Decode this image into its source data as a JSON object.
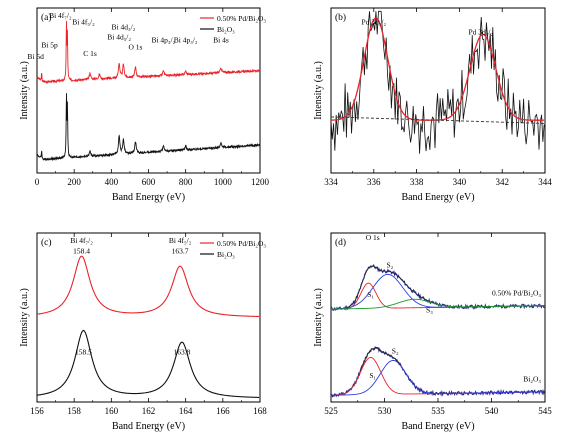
{
  "colors": {
    "red": "#e8242a",
    "black": "#111111",
    "blue": "#2a3fe0",
    "green": "#1a9a2a",
    "navy": "#2a2a8a"
  },
  "chart_data": [
    {
      "id": "a",
      "type": "line",
      "panel_label": "(a)",
      "xlabel": "Band Energy (eV)",
      "ylabel": "Intensity (a.u.)",
      "xlim": [
        0,
        1200
      ],
      "xticks": [
        "0",
        "200",
        "400",
        "600",
        "800",
        "1000",
        "1200"
      ],
      "legend": {
        "placement": "top-right",
        "entries": [
          {
            "label": "0.50% Pd/Bi₂O₃",
            "color": "#e8242a"
          },
          {
            "label": "Bi₂O₃",
            "color": "#111111"
          }
        ]
      },
      "series": [
        {
          "name": "0.50% Pd/Bi₂O₃",
          "color": "#e8242a",
          "baseline": [
            [
              0,
              0.55
            ],
            [
              1200,
              0.62
            ]
          ],
          "peaks": [
            [
              25,
              0.05
            ],
            [
              158.5,
              0.35
            ],
            [
              163.7,
              0.27
            ],
            [
              285,
              0.04
            ],
            [
              336,
              0.03
            ],
            [
              442,
              0.09
            ],
            [
              465,
              0.08
            ],
            [
              530,
              0.06
            ],
            [
              680,
              0.03
            ],
            [
              800,
              0.02
            ],
            [
              990,
              0.03
            ]
          ]
        },
        {
          "name": "Bi₂O₃",
          "color": "#111111",
          "baseline": [
            [
              0,
              0.08
            ],
            [
              1200,
              0.17
            ]
          ],
          "peaks": [
            [
              25,
              0.05
            ],
            [
              158.5,
              0.38
            ],
            [
              163.8,
              0.3
            ],
            [
              285,
              0.03
            ],
            [
              442,
              0.11
            ],
            [
              465,
              0.09
            ],
            [
              530,
              0.07
            ],
            [
              680,
              0.035
            ],
            [
              800,
              0.025
            ],
            [
              990,
              0.03
            ]
          ]
        }
      ],
      "annotations": [
        {
          "text": "Bi 5d",
          "x": 25
        },
        {
          "text": "Bi 5p",
          "x": 57
        },
        {
          "text": "Bi 4f₇/₂",
          "x": 158
        },
        {
          "text": "Bi 4f₅/₂",
          "x": 164
        },
        {
          "text": "C 1s",
          "x": 285
        },
        {
          "text": "Bi 4d₅/₂",
          "x": 442
        },
        {
          "text": "Bi 4d₃/₂",
          "x": 465
        },
        {
          "text": "O 1s",
          "x": 530
        },
        {
          "text": "Bi 4p₃/₂",
          "x": 680
        },
        {
          "text": "Bi 4p₃/₂",
          "x": 800
        },
        {
          "text": "Bi 4s",
          "x": 990
        }
      ]
    },
    {
      "id": "b",
      "type": "line",
      "panel_label": "(b)",
      "xlabel": "Band Energy (eV)",
      "ylabel": "Intensity (a.u.)",
      "xlim": [
        334,
        344
      ],
      "xticks": [
        "334",
        "336",
        "338",
        "340",
        "342",
        "344"
      ],
      "series": [
        {
          "name": "raw",
          "color": "#111111",
          "style": "noisy",
          "noise_amplitude": 0.18,
          "seed": 7
        },
        {
          "name": "fit",
          "color": "#e8242a",
          "style": "fit"
        },
        {
          "name": "background",
          "color": "#333333",
          "style": "dashed"
        }
      ],
      "fit_peaks": [
        {
          "center": 336.1,
          "height": 0.62,
          "width": 0.55
        },
        {
          "center": 341.1,
          "height": 0.52,
          "width": 0.6
        }
      ],
      "background_level": 0.32,
      "annotations": [
        {
          "text": "Pd 3d₅/₂",
          "x": 336.0
        },
        {
          "text": "Pd 3d₃/₂",
          "x": 341.0
        }
      ]
    },
    {
      "id": "c",
      "type": "line",
      "panel_label": "(c)",
      "xlabel": "Band Energy (eV)",
      "ylabel": "Intensity (a.u.)",
      "xlim": [
        156,
        168
      ],
      "xticks": [
        "156",
        "158",
        "160",
        "162",
        "164",
        "166",
        "168"
      ],
      "legend": {
        "placement": "top-right",
        "entries": [
          {
            "label": "0.50% Pd/Bi₂O₃",
            "color": "#e8242a"
          },
          {
            "label": "Bi₂O₃",
            "color": "#111111"
          }
        ]
      },
      "series": [
        {
          "name": "0.50% Pd/Bi₂O₃",
          "color": "#e8242a",
          "offset": 0.5,
          "peaks": [
            {
              "center": 158.4,
              "height": 0.36
            },
            {
              "center": 163.7,
              "height": 0.3
            }
          ]
        },
        {
          "name": "Bi₂O₃",
          "color": "#111111",
          "offset": 0.02,
          "peaks": [
            {
              "center": 158.5,
              "height": 0.4
            },
            {
              "center": 163.8,
              "height": 0.33
            }
          ]
        }
      ],
      "peak_labels": [
        {
          "text": "Bi 4f₇/₂",
          "x": 158.4,
          "level": "top"
        },
        {
          "text": "158.4",
          "x": 158.4,
          "level": "red"
        },
        {
          "text": "Bi 4f₅/₂",
          "x": 163.7,
          "level": "top"
        },
        {
          "text": "163.7",
          "x": 163.7,
          "level": "red"
        },
        {
          "text": "158.5",
          "x": 158.5,
          "level": "black"
        },
        {
          "text": "163.8",
          "x": 163.8,
          "level": "black"
        }
      ]
    },
    {
      "id": "d",
      "type": "line",
      "panel_label": "(d)",
      "xlabel": "Band Energy (eV)",
      "ylabel": "Intensity (a.u.)",
      "xlim": [
        525,
        545
      ],
      "xticks": [
        "525",
        "530",
        "535",
        "540",
        "545"
      ],
      "groups": [
        {
          "label": "0.50% Pd/Bi₂O₃",
          "offset": 0.55,
          "components": [
            {
              "label": "S₁",
              "center": 528.5,
              "height": 0.15,
              "width": 0.7,
              "color": "#e8242a"
            },
            {
              "label": "S₂",
              "center": 530.3,
              "height": 0.2,
              "width": 1.4,
              "color": "#2a3fe0"
            },
            {
              "label": "S₃",
              "center": 532.8,
              "height": 0.05,
              "width": 1.5,
              "color": "#1a9a2a"
            }
          ]
        },
        {
          "label": "Bi₂O₃",
          "offset": 0.04,
          "components": [
            {
              "label": "S₁",
              "center": 528.7,
              "height": 0.22,
              "width": 0.95,
              "color": "#e8242a"
            },
            {
              "label": "S₂",
              "center": 530.8,
              "height": 0.2,
              "width": 1.2,
              "color": "#2a3fe0"
            }
          ]
        }
      ],
      "annotations": [
        {
          "text": "O 1s",
          "x": 528.9
        }
      ]
    }
  ]
}
